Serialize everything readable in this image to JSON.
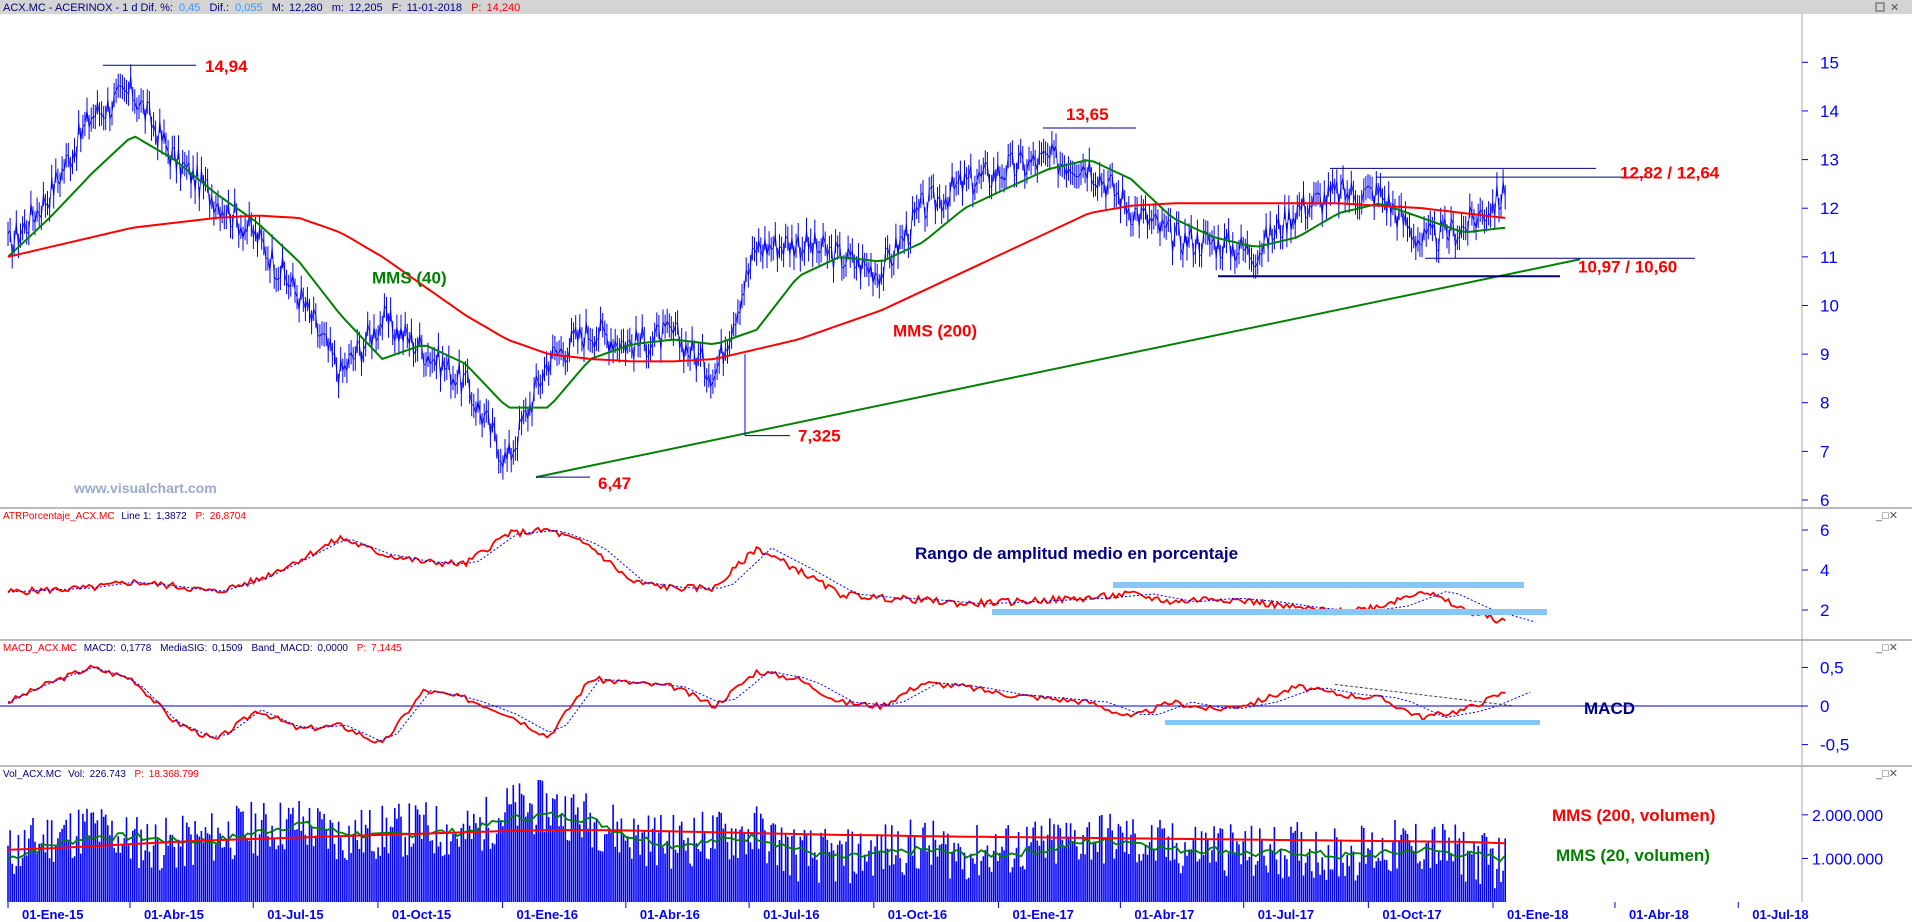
{
  "colors": {
    "price": "#0000ff",
    "mms40": "#008000",
    "mms200": "#ff0000",
    "annotation": "#ff0000",
    "panel_title": "#00008b",
    "support": "#000080",
    "band": "#87c7f5",
    "axis_text": "#0000ff",
    "header_bg": "#d4d4d4",
    "header_text": "#000080",
    "header_value": "#3399ff"
  },
  "header": {
    "ticker_label": "ACX.MC - ACERINOX - 1 d Dif. %:",
    "dif_pct": "0,45",
    "dif_label": "Dif.:",
    "dif": "0,055",
    "max_label": "M:",
    "max": "12,280",
    "min_label": "m:",
    "min": "12,205",
    "date_label": "F:",
    "date": "11-01-2018",
    "last_label": "P:",
    "last": "14,240"
  },
  "panels": {
    "atr": {
      "label": "ATRPorcentaje_ACX.MC",
      "line_label": "Line 1:",
      "line_value": "1,3872",
      "p_label": "P:",
      "p_value": "26,8704"
    },
    "macd": {
      "label": "MACD_ACX.MC",
      "macd_label": "MACD:",
      "macd_value": "0,1778",
      "sig_label": "MediaSIG:",
      "sig_value": "0,1509",
      "band_label": "Band_MACD:",
      "band_value": "0,0000",
      "p_label": "P:",
      "p_value": "7,1445"
    },
    "vol": {
      "label": "Vol_ACX.MC",
      "vol_label": "Vol:",
      "vol_value": "226.743",
      "p_label": "P:",
      "p_value": "18.368.799"
    }
  },
  "watermark": "www.visualchart.com",
  "chart_data": [
    {
      "type": "line",
      "title": "ACX.MC - ACERINOX",
      "x": [
        "2015-01-01",
        "2015-02-01",
        "2015-03-01",
        "2015-04-01",
        "2015-05-01",
        "2015-06-01",
        "2015-07-01",
        "2015-08-01",
        "2015-09-01",
        "2015-10-01",
        "2015-11-01",
        "2015-12-01",
        "2016-01-01",
        "2016-02-01",
        "2016-03-01",
        "2016-04-01",
        "2016-05-01",
        "2016-06-01",
        "2016-07-01",
        "2016-08-01",
        "2016-09-01",
        "2016-10-01",
        "2016-11-01",
        "2016-12-01",
        "2017-01-01",
        "2017-02-01",
        "2017-03-01",
        "2017-04-01",
        "2017-05-01",
        "2017-06-01",
        "2017-07-01",
        "2017-08-01",
        "2017-09-01",
        "2017-10-01",
        "2017-11-01",
        "2017-12-01",
        "2018-01-01"
      ],
      "x_ticks": [
        "01-Ene-15",
        "01-Abr-15",
        "01-Jul-15",
        "01-Oct-15",
        "01-Ene-16",
        "01-Abr-16",
        "01-Jul-16",
        "01-Oct-16",
        "01-Ene-17",
        "01-Abr-17",
        "01-Jul-17",
        "01-Oct-17",
        "01-Ene-18",
        "01-Abr-18",
        "01-Jul-18"
      ],
      "ylim": [
        6,
        15.5
      ],
      "y_ticks": [
        "6",
        "7",
        "8",
        "9",
        "10",
        "11",
        "12",
        "13",
        "14",
        "15"
      ],
      "series": [
        {
          "name": "",
          "values": [
            11.2,
            12.3,
            13.9,
            14.4,
            13.0,
            12.2,
            11.4,
            10.2,
            8.6,
            9.7,
            9.1,
            8.4,
            6.8,
            8.9,
            9.5,
            9.2,
            9.4,
            8.6,
            11.2,
            11.3,
            11.0,
            10.7,
            12.0,
            12.5,
            12.8,
            13.0,
            12.9,
            12.0,
            11.4,
            11.3,
            11.1,
            12.0,
            12.3,
            12.3,
            11.3,
            11.6,
            12.3
          ]
        },
        {
          "name": "MMS (40)",
          "values": [
            11.0,
            11.8,
            12.7,
            13.5,
            13.0,
            12.3,
            11.7,
            10.9,
            9.8,
            8.9,
            9.2,
            8.8,
            7.9,
            7.9,
            8.9,
            9.2,
            9.3,
            9.2,
            9.5,
            10.6,
            11.0,
            10.9,
            11.3,
            12.0,
            12.4,
            12.8,
            13.0,
            12.6,
            11.8,
            11.4,
            11.2,
            11.4,
            11.9,
            12.1,
            11.8,
            11.5,
            11.6
          ]
        },
        {
          "name": "MMS (200)",
          "values": [
            11.0,
            11.2,
            11.4,
            11.6,
            11.7,
            11.8,
            11.85,
            11.8,
            11.5,
            11.0,
            10.4,
            9.8,
            9.3,
            9.0,
            8.9,
            8.85,
            8.85,
            8.9,
            9.1,
            9.3,
            9.6,
            9.9,
            10.3,
            10.7,
            11.1,
            11.5,
            11.9,
            12.05,
            12.1,
            12.1,
            12.1,
            12.1,
            12.1,
            12.05,
            12.0,
            11.9,
            11.8
          ]
        }
      ],
      "annotations": [
        "14,94",
        "13,65",
        "12,82 / 12,64",
        "10,97 / 10,60",
        "7,325",
        "6,47",
        "MMS (40)",
        "MMS (200)"
      ]
    },
    {
      "type": "line",
      "title": "Rango de amplitud medio en porcentaje",
      "ylim": [
        1,
        6.5
      ],
      "y_ticks": [
        "2",
        "4",
        "6"
      ],
      "series": [
        {
          "name": "",
          "values": [
            2.9,
            3.0,
            3.1,
            3.4,
            3.2,
            2.9,
            3.5,
            4.5,
            5.6,
            4.8,
            4.4,
            4.3,
            5.8,
            6.0,
            5.2,
            3.4,
            3.1,
            3.1,
            5.1,
            4.0,
            2.8,
            2.6,
            2.5,
            2.3,
            2.4,
            2.5,
            2.6,
            2.8,
            2.4,
            2.6,
            2.4,
            2.1,
            1.9,
            2.2,
            3.0,
            2.0,
            1.4
          ]
        }
      ]
    },
    {
      "type": "line",
      "title": "MACD",
      "ylim": [
        -0.7,
        0.7
      ],
      "y_ticks": [
        "0,5",
        "0",
        "-0,5"
      ],
      "series": [
        {
          "name": "",
          "values": [
            0.05,
            0.3,
            0.5,
            0.35,
            -0.2,
            -0.45,
            -0.05,
            -0.3,
            -0.25,
            -0.5,
            0.2,
            0.1,
            -0.1,
            -0.4,
            0.35,
            0.3,
            0.25,
            0.0,
            0.45,
            0.35,
            0.05,
            0.0,
            0.3,
            0.25,
            0.15,
            0.1,
            0.05,
            -0.15,
            0.05,
            -0.05,
            0.05,
            0.25,
            0.15,
            0.1,
            -0.15,
            -0.05,
            0.18
          ]
        }
      ]
    },
    {
      "type": "bar",
      "title": "Vol_ACX.MC",
      "ylim": [
        0,
        2800000
      ],
      "y_ticks": [
        "2.000.000",
        "1.000.000"
      ],
      "series": [
        {
          "name": "",
          "values": [
            1100000,
            1500000,
            1700000,
            1400000,
            1300000,
            1500000,
            1700000,
            1800000,
            1500000,
            1600000,
            1700000,
            1500000,
            2100000,
            2200000,
            1900000,
            1500000,
            1400000,
            1500000,
            1600000,
            1100000,
            1000000,
            1200000,
            1300000,
            1100000,
            1200000,
            1300000,
            1500000,
            1400000,
            1200000,
            1300000,
            1100000,
            1200000,
            1100000,
            1200000,
            1300000,
            1100000,
            900000
          ]
        },
        {
          "name": "MMS (20, volumen)",
          "values": [
            1000000,
            1300000,
            1500000,
            1500000,
            1400000,
            1400000,
            1600000,
            1800000,
            1600000,
            1500000,
            1600000,
            1600000,
            1900000,
            2000000,
            1900000,
            1500000,
            1300000,
            1400000,
            1500000,
            1200000,
            1000000,
            1100000,
            1200000,
            1100000,
            1100000,
            1200000,
            1400000,
            1400000,
            1200000,
            1200000,
            1100000,
            1150000,
            1050000,
            1100000,
            1200000,
            1100000,
            1000000
          ]
        },
        {
          "name": "MMS (200, volumen)",
          "values": [
            1200000,
            1230000,
            1280000,
            1330000,
            1380000,
            1420000,
            1450000,
            1480000,
            1510000,
            1540000,
            1570000,
            1600000,
            1630000,
            1650000,
            1650000,
            1640000,
            1620000,
            1600000,
            1580000,
            1560000,
            1540000,
            1530000,
            1510000,
            1500000,
            1490000,
            1480000,
            1470000,
            1460000,
            1450000,
            1440000,
            1430000,
            1420000,
            1410000,
            1400000,
            1390000,
            1380000,
            1350000
          ]
        }
      ],
      "annotations": [
        "MMS (200, volumen)",
        "MMS (20, volumen)"
      ]
    }
  ]
}
